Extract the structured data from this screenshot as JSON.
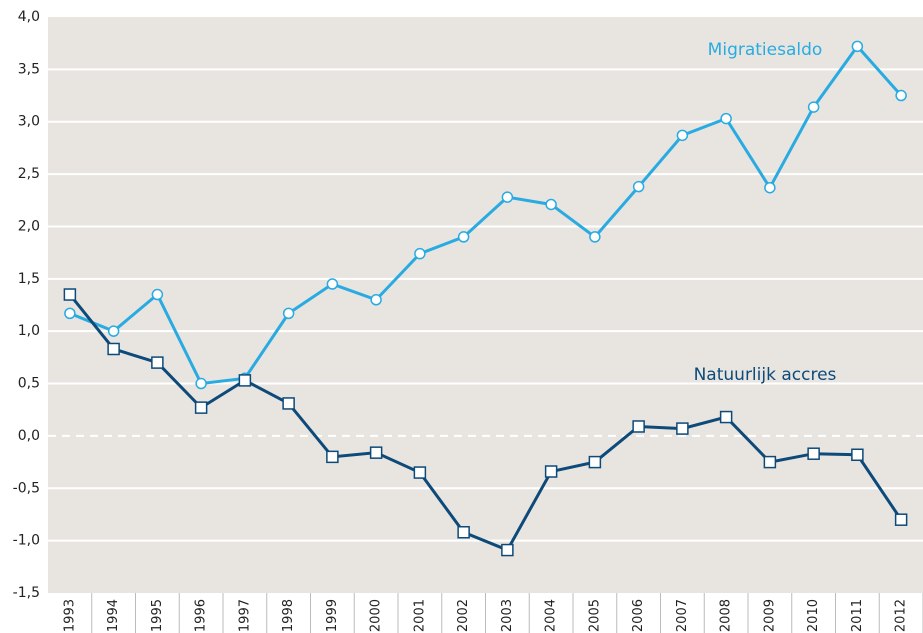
{
  "chart_data": {
    "type": "line",
    "categories": [
      "1993",
      "1994",
      "1995",
      "1996",
      "1997",
      "1998",
      "1999",
      "2000",
      "2001",
      "2002",
      "2003",
      "2004",
      "2005",
      "2006",
      "2007",
      "2008",
      "2009",
      "2010",
      "2011",
      "2012"
    ],
    "series": [
      {
        "name": "Migratiesaldo",
        "color": "#29abe2",
        "marker": "circle",
        "values": [
          1.17,
          1.0,
          1.35,
          0.5,
          0.55,
          1.17,
          1.45,
          1.3,
          1.74,
          1.9,
          2.28,
          2.21,
          1.9,
          2.38,
          2.87,
          3.03,
          2.37,
          3.14,
          3.72,
          3.25
        ]
      },
      {
        "name": "Natuurlijk accres",
        "color": "#0d4a7a",
        "marker": "square",
        "values": [
          1.35,
          0.83,
          0.7,
          0.27,
          0.53,
          0.31,
          -0.2,
          -0.16,
          -0.35,
          -0.92,
          -1.09,
          -0.34,
          -0.25,
          0.09,
          0.07,
          0.18,
          -0.25,
          -0.17,
          -0.18,
          -0.8
        ]
      }
    ],
    "ylim": [
      -1.5,
      4.0
    ],
    "yticks": [
      {
        "value": -1.5,
        "label": "-1,5"
      },
      {
        "value": -1.0,
        "label": "-1,0"
      },
      {
        "value": -0.5,
        "label": "-0,5"
      },
      {
        "value": 0,
        "label": "0,0"
      },
      {
        "value": 0.5,
        "label": "0,5"
      },
      {
        "value": 1.0,
        "label": "1,0"
      },
      {
        "value": 1.5,
        "label": "1,5"
      },
      {
        "value": 2.0,
        "label": "2,0"
      },
      {
        "value": 2.5,
        "label": "2,5"
      },
      {
        "value": 3.0,
        "label": "3,0"
      },
      {
        "value": 3.5,
        "label": "3,5"
      },
      {
        "value": 4.0,
        "label": "4,0"
      }
    ],
    "grid": true
  }
}
